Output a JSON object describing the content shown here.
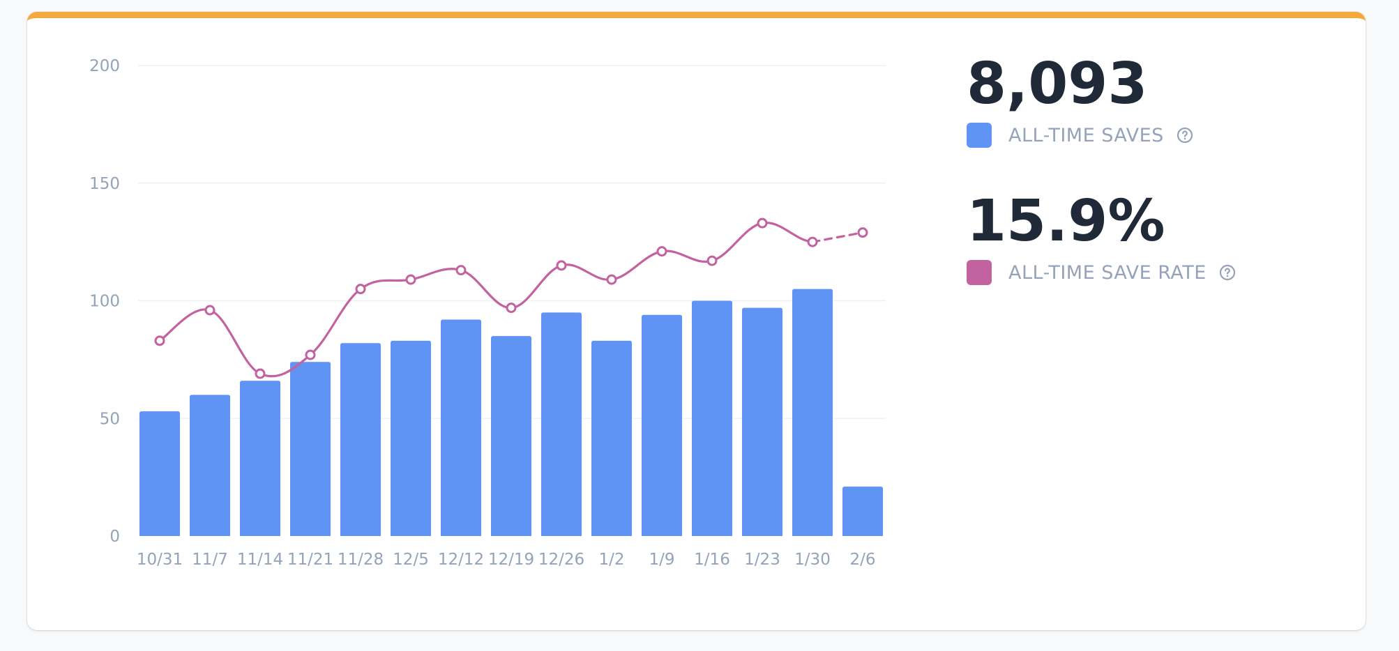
{
  "colors": {
    "accent_bar": "#f6a93b",
    "saves": "#5f94f5",
    "save_rate": "#c2639f",
    "text_muted": "#94a3b8",
    "text_dark": "#1f2937"
  },
  "stats": [
    {
      "value": "8,093",
      "label": "ALL-TIME SAVES",
      "color": "#5f94f5",
      "icon": "help-circle-icon"
    },
    {
      "value": "15.9%",
      "label": "ALL-TIME SAVE RATE",
      "color": "#c2639f",
      "icon": "help-circle-icon"
    }
  ],
  "chart_data": {
    "type": "bar",
    "categories": [
      "10/31",
      "11/7",
      "11/14",
      "11/21",
      "11/28",
      "12/5",
      "12/12",
      "12/19",
      "12/26",
      "1/2",
      "1/9",
      "1/16",
      "1/23",
      "1/30",
      "2/6"
    ],
    "y_ticks": [
      "0",
      "50",
      "100",
      "150",
      "200"
    ],
    "ylim": [
      0,
      200
    ],
    "grid": true,
    "series": [
      {
        "type": "bar",
        "color": "#5f94f5",
        "values": [
          53,
          60,
          66,
          74,
          82,
          83,
          92,
          85,
          95,
          83,
          94,
          100,
          97,
          105,
          21
        ]
      },
      {
        "type": "line",
        "color": "#c2639f",
        "values": [
          83,
          96,
          69,
          77,
          105,
          109,
          113,
          97,
          115,
          109,
          121,
          117,
          133,
          125,
          129
        ],
        "dashed_last_segment": true
      }
    ]
  }
}
